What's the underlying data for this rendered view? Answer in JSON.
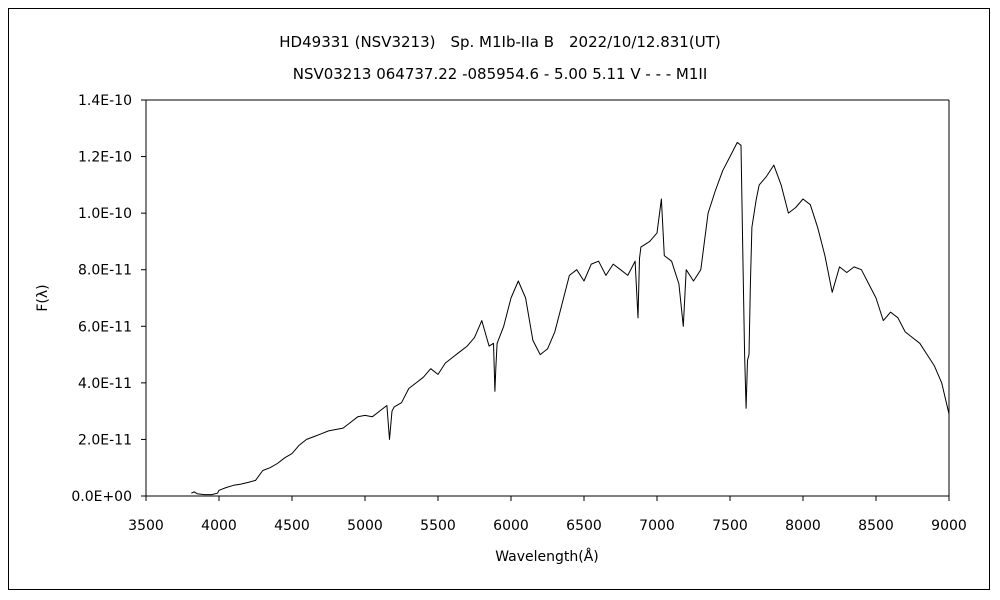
{
  "chart_data": {
    "type": "line",
    "title": "HD49331 (NSV3213)　Sp. M1Ib-IIa B　2022/10/12.831(UT)",
    "subtitle": "NSV03213 064737.22 -085954.6 - 5.00 5.11 V - - - M1II",
    "xlabel": "Wavelength(Å)",
    "ylabel": "F(λ)",
    "xlim": [
      3500,
      9000
    ],
    "ylim": [
      0,
      1.4e-10
    ],
    "x_ticks": [
      3500,
      4000,
      4500,
      5000,
      5500,
      6000,
      6500,
      7000,
      7500,
      8000,
      8500,
      9000
    ],
    "x_tick_labels": [
      "3500",
      "4000",
      "4500",
      "5000",
      "5500",
      "6000",
      "6500",
      "7000",
      "7500",
      "8000",
      "8500",
      "9000"
    ],
    "y_ticks": [
      0,
      2e-11,
      4e-11,
      6e-11,
      8e-11,
      1e-10,
      1.2e-10,
      1.4e-10
    ],
    "y_tick_labels": [
      "0.0E+00",
      "2.0E-11",
      "4.0E-11",
      "6.0E-11",
      "8.0E-11",
      "1.0E-10",
      "1.2E-10",
      "1.4E-10"
    ],
    "grid": false,
    "series": [
      {
        "color": "#000000",
        "x": [
          3810,
          3830,
          3850,
          3900,
          3950,
          3990,
          4000,
          4050,
          4100,
          4150,
          4200,
          4250,
          4300,
          4350,
          4400,
          4450,
          4500,
          4550,
          4600,
          4650,
          4700,
          4750,
          4800,
          4850,
          4900,
          4950,
          5000,
          5050,
          5100,
          5150,
          5168,
          5185,
          5200,
          5250,
          5300,
          5350,
          5400,
          5450,
          5500,
          5550,
          5600,
          5650,
          5700,
          5750,
          5800,
          5850,
          5880,
          5890,
          5896,
          5905,
          5950,
          6000,
          6050,
          6100,
          6150,
          6200,
          6250,
          6300,
          6350,
          6400,
          6450,
          6500,
          6550,
          6600,
          6650,
          6700,
          6750,
          6800,
          6850,
          6870,
          6880,
          6890,
          6950,
          7000,
          7030,
          7050,
          7100,
          7150,
          7180,
          7200,
          7250,
          7300,
          7350,
          7400,
          7450,
          7500,
          7550,
          7575,
          7590,
          7600,
          7610,
          7620,
          7630,
          7640,
          7650,
          7680,
          7700,
          7750,
          7800,
          7850,
          7900,
          7950,
          8000,
          8050,
          8100,
          8150,
          8200,
          8250,
          8300,
          8350,
          8400,
          8450,
          8500,
          8550,
          8600,
          8650,
          8700,
          8750,
          8800,
          8850,
          8900,
          8950,
          9000
        ],
        "y": [
          1e-12,
          1.5e-12,
          8e-13,
          5e-13,
          5e-13,
          1e-12,
          2e-12,
          3e-12,
          3.8e-12,
          4.2e-12,
          4.8e-12,
          5.5e-12,
          9e-12,
          1e-11,
          1.15e-11,
          1.35e-11,
          1.5e-11,
          1.8e-11,
          2e-11,
          2.1e-11,
          2.2e-11,
          2.3e-11,
          2.35e-11,
          2.4e-11,
          2.6e-11,
          2.8e-11,
          2.85e-11,
          2.8e-11,
          3e-11,
          3.2e-11,
          2e-11,
          3e-11,
          3.15e-11,
          3.3e-11,
          3.8e-11,
          4e-11,
          4.2e-11,
          4.5e-11,
          4.3e-11,
          4.7e-11,
          4.9e-11,
          5.1e-11,
          5.3e-11,
          5.6e-11,
          6.2e-11,
          5.3e-11,
          5.4e-11,
          3.7e-11,
          4.5e-11,
          5.4e-11,
          6e-11,
          7e-11,
          7.6e-11,
          7e-11,
          5.5e-11,
          5e-11,
          5.2e-11,
          5.8e-11,
          6.8e-11,
          7.8e-11,
          8e-11,
          7.6e-11,
          8.2e-11,
          8.3e-11,
          7.8e-11,
          8.2e-11,
          8e-11,
          7.8e-11,
          8.3e-11,
          6.3e-11,
          8.4e-11,
          8.8e-11,
          9e-11,
          9.3e-11,
          1.05e-10,
          8.5e-11,
          8.3e-11,
          7.5e-11,
          6e-11,
          8e-11,
          7.6e-11,
          8e-11,
          1e-10,
          1.08e-10,
          1.15e-10,
          1.2e-10,
          1.25e-10,
          1.24e-10,
          8e-11,
          5e-11,
          3.1e-11,
          4.8e-11,
          5e-11,
          7.5e-11,
          9.5e-11,
          1.05e-10,
          1.1e-10,
          1.13e-10,
          1.17e-10,
          1.1e-10,
          1e-10,
          1.02e-10,
          1.05e-10,
          1.03e-10,
          9.5e-11,
          8.5e-11,
          7.2e-11,
          8.1e-11,
          7.9e-11,
          8.1e-11,
          8e-11,
          7.5e-11,
          7e-11,
          6.2e-11,
          6.5e-11,
          6.3e-11,
          5.8e-11,
          5.6e-11,
          5.4e-11,
          5e-11,
          4.6e-11,
          4e-11,
          2.9e-11
        ]
      }
    ]
  }
}
